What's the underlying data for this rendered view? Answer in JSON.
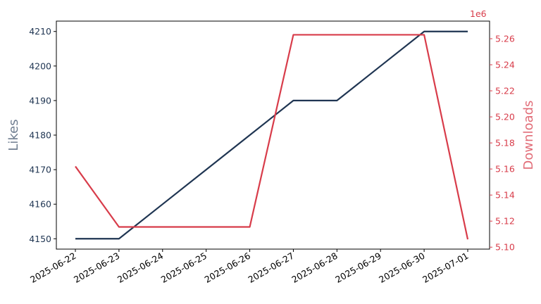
{
  "chart_data": {
    "type": "line",
    "x": [
      "2025-06-22",
      "2025-06-23",
      "2025-06-24",
      "2025-06-25",
      "2025-06-26",
      "2025-06-27",
      "2025-06-28",
      "2025-06-29",
      "2025-06-30",
      "2025-07-01"
    ],
    "series": [
      {
        "name": "Likes",
        "axis": "left",
        "color": "#1f3552",
        "values": [
          4150,
          4150,
          4160,
          4170,
          4180,
          4190,
          4190,
          4200,
          4210,
          4210
        ]
      },
      {
        "name": "Downloads",
        "axis": "right",
        "color": "#d83c4a",
        "values": [
          5162000,
          5115500,
          5115500,
          5115500,
          5115500,
          5263000,
          5263000,
          5263000,
          5263000,
          5106000
        ]
      }
    ],
    "ylabel_left": "Likes",
    "ylabel_right": "Downloads",
    "left_color": "#1f3552",
    "right_color": "#d83c4a",
    "right_axis_multiplier": "1e6",
    "left_ticks": [
      4150,
      4160,
      4170,
      4180,
      4190,
      4200,
      4210
    ],
    "left_ylim": [
      4147,
      4213
    ],
    "right_ticks": [
      "5.10",
      "5.12",
      "5.14",
      "5.16",
      "5.18",
      "5.20",
      "5.22",
      "5.24",
      "5.26"
    ],
    "right_ylim": [
      5.0985,
      5.2735
    ],
    "grid": false,
    "legend": "none"
  }
}
